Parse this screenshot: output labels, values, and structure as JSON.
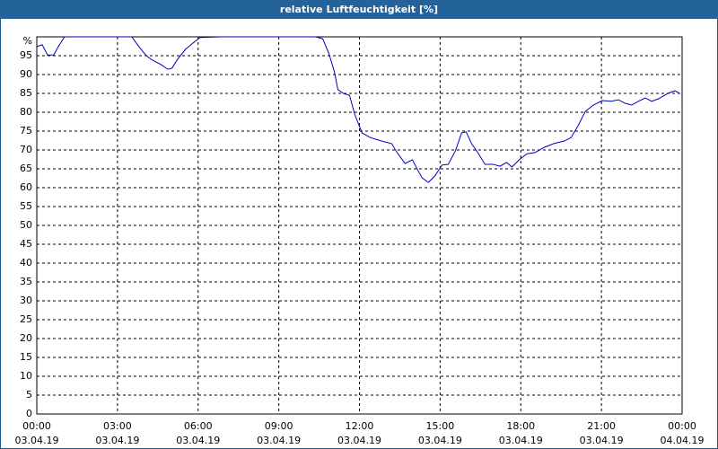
{
  "chart_data": {
    "type": "line",
    "title": "relative Luftfeuchtigkeit [%]",
    "x": [
      0,
      0.2,
      0.4,
      0.63,
      0.8,
      1.03,
      1.3,
      2.73,
      3.53,
      3.8,
      4.07,
      4.3,
      4.63,
      4.87,
      5.03,
      5.23,
      5.53,
      5.8,
      6.07,
      6.87,
      10.37,
      10.63,
      10.87,
      11.07,
      11.2,
      11.4,
      11.63,
      11.83,
      12.1,
      12.4,
      12.8,
      13.2,
      13.4,
      13.7,
      13.97,
      14.13,
      14.33,
      14.57,
      14.8,
      15.07,
      15.3,
      15.57,
      15.8,
      15.97,
      16.17,
      16.4,
      16.67,
      16.97,
      17.23,
      17.47,
      17.67,
      17.97,
      18.23,
      18.53,
      18.87,
      19.23,
      19.63,
      19.87,
      20.13,
      20.4,
      20.7,
      21.03,
      21.37,
      21.63,
      21.87,
      22.13,
      22.37,
      22.63,
      22.87,
      23.13,
      23.47,
      23.73,
      23.87
    ],
    "series": [
      {
        "color": "#0000c0",
        "values": [
          97.4,
          97.9,
          95.2,
          95.2,
          97.4,
          100,
          100,
          100,
          100,
          97.4,
          95,
          93.8,
          92.6,
          91.4,
          91.7,
          94,
          96.7,
          98.3,
          99.8,
          100,
          100,
          99.5,
          95.5,
          90.7,
          86,
          85,
          84.5,
          79.3,
          74.5,
          73.3,
          72.4,
          71.7,
          69.3,
          66.4,
          67.4,
          65.2,
          62.6,
          61.4,
          63.1,
          66,
          66.2,
          69.8,
          74.5,
          74.8,
          71.7,
          69.3,
          66.2,
          66.2,
          65.7,
          66.7,
          65.5,
          67.6,
          69,
          69.3,
          70.7,
          71.7,
          72.4,
          73.3,
          76.4,
          80.2,
          81.9,
          83.1,
          82.9,
          83.3,
          82.4,
          81.9,
          82.9,
          83.8,
          82.9,
          83.6,
          85,
          85.7,
          85.2
        ]
      }
    ],
    "xlim": [
      0,
      24
    ],
    "xticks": [
      {
        "value": 0,
        "label": "00:00",
        "date": "03.04.19"
      },
      {
        "value": 3,
        "label": "03:00",
        "date": "03.04.19"
      },
      {
        "value": 6,
        "label": "06:00",
        "date": "03.04.19"
      },
      {
        "value": 9,
        "label": "09:00",
        "date": "03.04.19"
      },
      {
        "value": 12,
        "label": "12:00",
        "date": "03.04.19"
      },
      {
        "value": 15,
        "label": "15:00",
        "date": "03.04.19"
      },
      {
        "value": 18,
        "label": "18:00",
        "date": "03.04.19"
      },
      {
        "value": 21,
        "label": "21:00",
        "date": "03.04.19"
      },
      {
        "value": 24,
        "label": "00:00",
        "date": "04.04.19"
      }
    ],
    "ylim": [
      0,
      100
    ],
    "yticks": [
      0,
      5,
      10,
      15,
      20,
      25,
      30,
      35,
      40,
      45,
      50,
      55,
      60,
      65,
      70,
      75,
      80,
      85,
      90,
      95,
      {
        "value": 100,
        "label": "%"
      }
    ],
    "grid": true
  }
}
